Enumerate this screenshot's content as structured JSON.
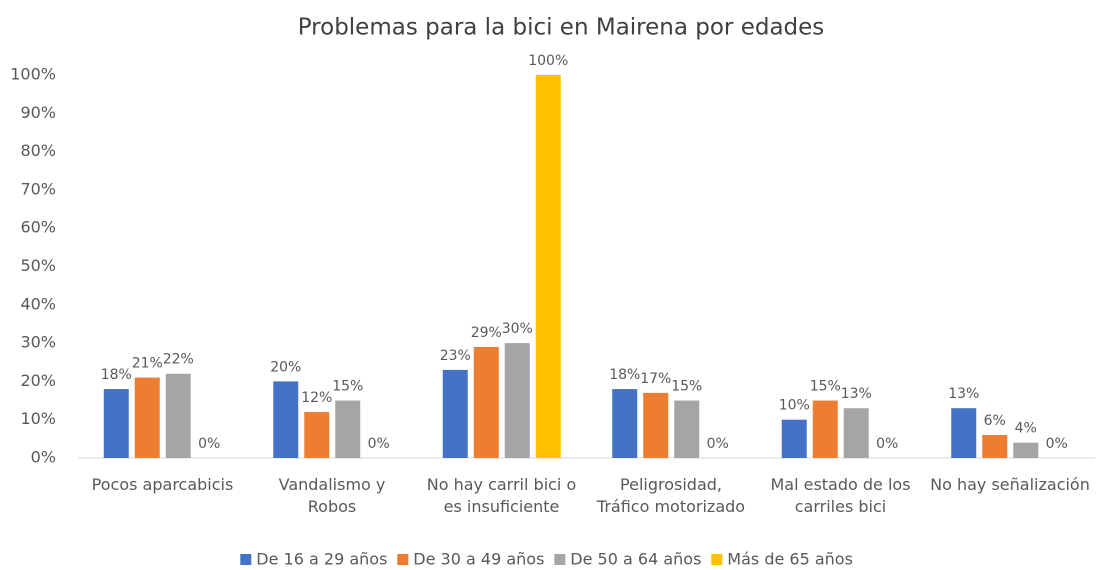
{
  "chart_data": {
    "type": "bar",
    "title": "Problemas para la bici en Mairena por edades",
    "categories": [
      "Pocos aparcabicis",
      "Vandalismo y\nRobos",
      "No hay carril bici o\nes insuficiente",
      "Peligrosidad,\nTráfico motorizado",
      "Mal estado de los\ncarriles bici",
      "No hay señalización"
    ],
    "series": [
      {
        "name": "De 16 a 29 años",
        "color": "#4472c4",
        "values": [
          18,
          20,
          23,
          18,
          10,
          13
        ],
        "value_labels": [
          "18%",
          "20%",
          "23%",
          "18%",
          "10%",
          "13%"
        ]
      },
      {
        "name": "De 30 a 49 años",
        "color": "#ed7d31",
        "values": [
          21,
          12,
          29,
          17,
          15,
          6
        ],
        "value_labels": [
          "21%",
          "12%",
          "29%",
          "17%",
          "15%",
          "6%"
        ]
      },
      {
        "name": "De 50 a 64 años",
        "color": "#a5a5a5",
        "values": [
          22,
          15,
          30,
          15,
          13,
          4
        ],
        "value_labels": [
          "22%",
          "15%",
          "30%",
          "15%",
          "13%",
          "4%"
        ]
      },
      {
        "name": "Más de 65 años",
        "color": "#ffc000",
        "values": [
          0,
          0,
          100,
          0,
          0,
          0
        ],
        "value_labels": [
          "0%",
          "0%",
          "100%",
          "0%",
          "0%",
          "0%"
        ]
      }
    ],
    "ylim": [
      0,
      100
    ],
    "yticks": [
      {
        "value": 0,
        "label": "0%"
      },
      {
        "value": 10,
        "label": "10%"
      },
      {
        "value": 20,
        "label": "20%"
      },
      {
        "value": 30,
        "label": "30%"
      },
      {
        "value": 40,
        "label": "40%"
      },
      {
        "value": 50,
        "label": "50%"
      },
      {
        "value": 60,
        "label": "60%"
      },
      {
        "value": 70,
        "label": "70%"
      },
      {
        "value": 80,
        "label": "80%"
      },
      {
        "value": 90,
        "label": "90%"
      },
      {
        "value": 100,
        "label": "100%"
      }
    ],
    "grid": false,
    "legend": "bottom"
  }
}
